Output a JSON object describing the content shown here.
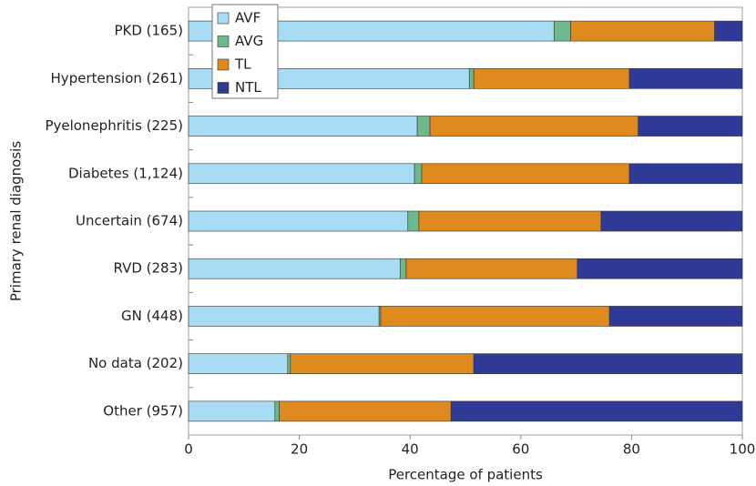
{
  "chart_data": {
    "type": "stacked-barh",
    "y_label": "Primary renal diagnosis",
    "x_label": "Percentage of patients",
    "categories": [
      "PKD (165)",
      "Hypertension (261)",
      "Pyelonephritis (225)",
      "Diabetes (1,124)",
      "Uncertain (674)",
      "RVD (283)",
      "GN (448)",
      "No data (202)",
      "Other (957)"
    ],
    "series": [
      {
        "name": "AVF",
        "color": "#a8dcf5",
        "values": [
          66,
          50.7,
          41.3,
          40.8,
          39.6,
          38.2,
          34.4,
          17.9,
          15.6
        ]
      },
      {
        "name": "AVG",
        "color": "#6db88c",
        "values": [
          3,
          0.8,
          2.3,
          1.3,
          2,
          1.1,
          0.3,
          0.5,
          0.8
        ]
      },
      {
        "name": "TL",
        "color": "#de8a1f",
        "values": [
          26,
          28.1,
          37.6,
          37.5,
          32.9,
          30.9,
          41.3,
          33.1,
          31
        ]
      },
      {
        "name": "NTL",
        "color": "#2e3a96",
        "values": [
          5,
          20.4,
          18.8,
          20.4,
          25.5,
          29.8,
          24,
          48.5,
          52.6
        ]
      }
    ],
    "xlim": [
      0,
      100
    ],
    "xticks": [
      0,
      20,
      40,
      60,
      80,
      100
    ],
    "legend": "upper left"
  }
}
